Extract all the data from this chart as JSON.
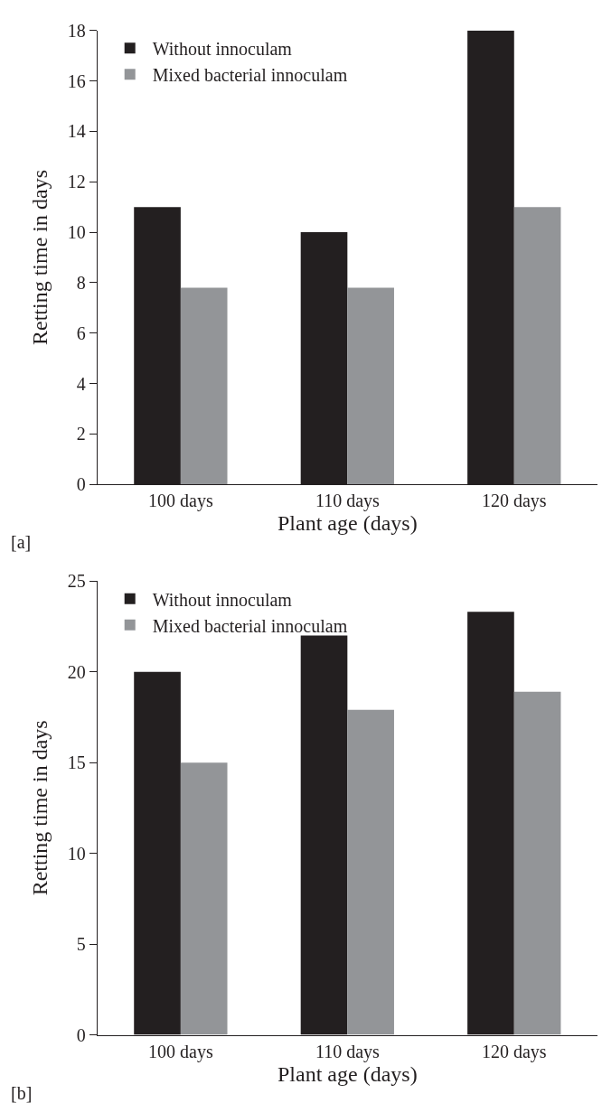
{
  "chart_data": [
    {
      "type": "bar",
      "xlabel": "Plant age (days)",
      "ylabel": "Retting time in days",
      "annotations": [
        "[a]"
      ],
      "categories": [
        "100 days",
        "110 days",
        "120 days"
      ],
      "series": [
        {
          "name": "Without innoculam",
          "color": "#231f20",
          "values": [
            11,
            10,
            18
          ]
        },
        {
          "name": "Mixed bacterial innoculam",
          "color": "#939598",
          "values": [
            7.8,
            7.8,
            11
          ]
        }
      ],
      "ylim": [
        0,
        18
      ],
      "yticks": [
        0,
        2,
        4,
        6,
        8,
        10,
        12,
        14,
        16,
        18
      ],
      "legend": "top left"
    },
    {
      "type": "bar",
      "xlabel": "Plant age (days)",
      "ylabel": "Retting time in days",
      "annotations": [
        "[b]"
      ],
      "categories": [
        "100 days",
        "110 days",
        "120 days"
      ],
      "series": [
        {
          "name": "Without innoculam",
          "color": "#231f20",
          "values": [
            20,
            22,
            23.3
          ]
        },
        {
          "name": "Mixed bacterial innoculam",
          "color": "#939598",
          "values": [
            15,
            17.9,
            18.9
          ]
        }
      ],
      "ylim": [
        0,
        25
      ],
      "yticks": [
        0,
        5,
        10,
        15,
        20,
        25
      ],
      "legend": "top left"
    }
  ]
}
